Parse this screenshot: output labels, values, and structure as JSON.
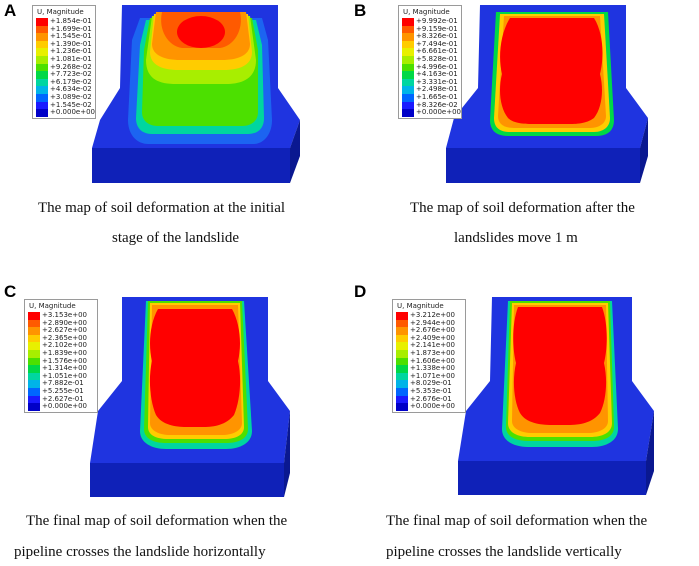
{
  "panels": [
    {
      "letter": "A",
      "legend_title": "U, Magnitude",
      "legend_values": [
        "+1.854e-01",
        "+1.699e-01",
        "+1.545e-01",
        "+1.390e-01",
        "+1.236e-01",
        "+1.081e-01",
        "+9.268e-02",
        "+7.723e-02",
        "+6.179e-02",
        "+4.634e-02",
        "+3.089e-02",
        "+1.545e-02",
        "+0.000e+00"
      ],
      "caption_lines": [
        "The map of soil deformation at the initial",
        "stage of the landslide"
      ]
    },
    {
      "letter": "B",
      "legend_title": "U, Magnitude",
      "legend_values": [
        "+9.992e-01",
        "+9.159e-01",
        "+8.326e-01",
        "+7.494e-01",
        "+6.661e-01",
        "+5.828e-01",
        "+4.996e-01",
        "+4.163e-01",
        "+3.331e-01",
        "+2.498e-01",
        "+1.665e-01",
        "+8.326e-02",
        "+0.000e+00"
      ],
      "caption_lines": [
        "The map of soil deformation after the",
        "landslides move 1 m"
      ]
    },
    {
      "letter": "C",
      "legend_title": "U, Magnitude",
      "legend_values": [
        "+3.153e+00",
        "+2.890e+00",
        "+2.627e+00",
        "+2.365e+00",
        "+2.102e+00",
        "+1.839e+00",
        "+1.576e+00",
        "+1.314e+00",
        "+1.051e+00",
        "+7.882e-01",
        "+5.255e-01",
        "+2.627e-01",
        "+0.000e+00"
      ],
      "caption_lines": [
        "The final map of soil deformation when the",
        "pipeline crosses the landslide horizontally"
      ]
    },
    {
      "letter": "D",
      "legend_title": "U, Magnitude",
      "legend_values": [
        "+3.212e+00",
        "+2.944e+00",
        "+2.676e+00",
        "+2.409e+00",
        "+2.141e+00",
        "+1.873e+00",
        "+1.606e+00",
        "+1.338e+00",
        "+1.071e+00",
        "+8.029e-01",
        "+5.353e-01",
        "+2.676e-01",
        "+0.000e+00"
      ],
      "caption_lines": [
        "The final map of soil deformation when the",
        "pipeline crosses the landslide vertically"
      ]
    }
  ],
  "colors": {
    "scale": [
      "#ff0000",
      "#ff5a00",
      "#ff9400",
      "#ffcc00",
      "#e8f000",
      "#a8ee00",
      "#4ce000",
      "#00d846",
      "#00d6a0",
      "#00b4e8",
      "#0066ff",
      "#1a1aff",
      "#0000c8"
    ],
    "slab_top": "#1f34e0",
    "slab_front": "#0f21b8",
    "slab_side": "#0a1890"
  }
}
